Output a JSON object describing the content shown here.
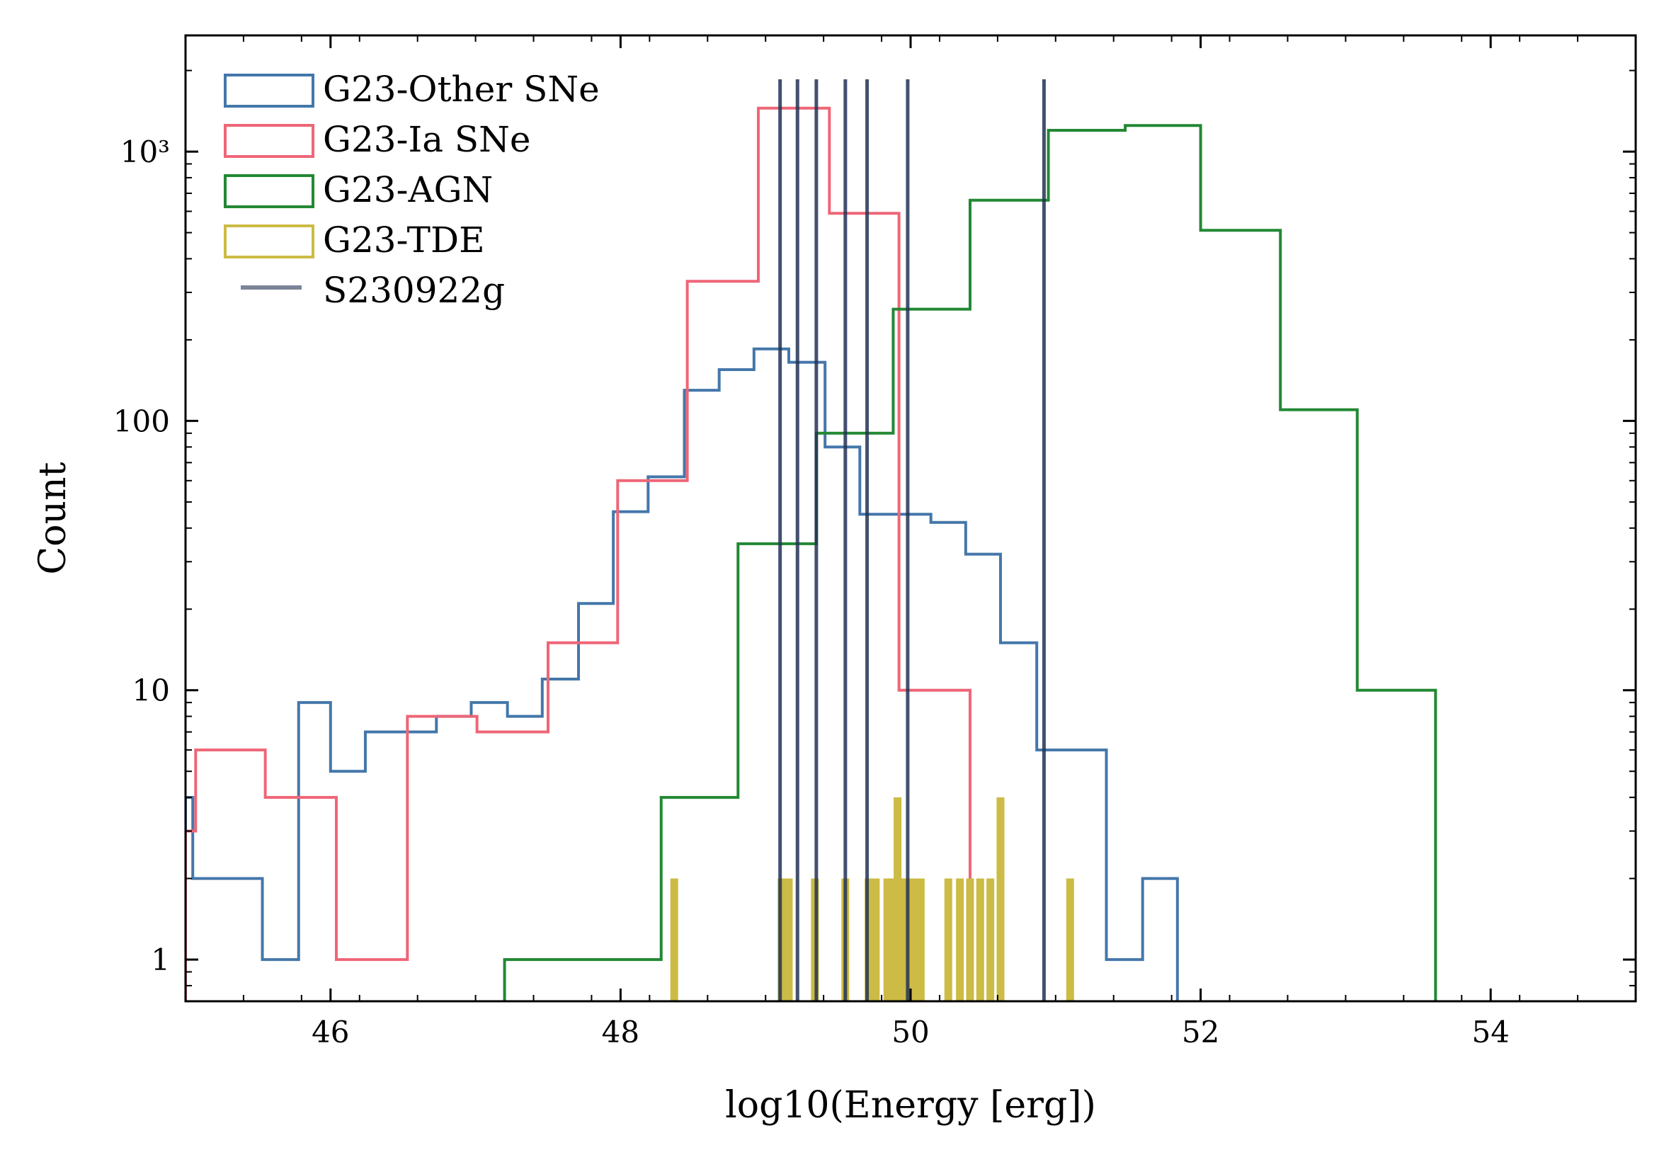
{
  "chart_data": {
    "type": "histogram",
    "xlabel": "log10(Energy [erg])",
    "ylabel": "Count",
    "xlim": [
      45,
      55
    ],
    "ylim": [
      0.7,
      2700
    ],
    "yscale": "log",
    "xticks": [
      46,
      48,
      50,
      52,
      54
    ],
    "xtick_labels": [
      "46",
      "48",
      "50",
      "52",
      "54"
    ],
    "yticks": [
      1,
      10,
      100,
      1000
    ],
    "ytick_labels": [
      "1",
      "10",
      "100",
      "10³"
    ],
    "grid": false,
    "legend_position": "top-left",
    "series": [
      {
        "name": "G23-Other SNe",
        "kind": "step",
        "color": "#4477aa",
        "edges": [
          45.0,
          45.05,
          45.53,
          45.78,
          46.0,
          46.24,
          46.5,
          46.73,
          46.97,
          47.22,
          47.46,
          47.71,
          47.95,
          48.19,
          48.44,
          48.68,
          48.92,
          49.16,
          49.41,
          49.65,
          49.9,
          50.14,
          50.38,
          50.62,
          50.87,
          51.11,
          51.35,
          51.6,
          51.84
        ],
        "counts": [
          4,
          2,
          1,
          9,
          5,
          7,
          7,
          8,
          9,
          8,
          11,
          21,
          46,
          62,
          130,
          155,
          185,
          165,
          80,
          45,
          45,
          42,
          32,
          15,
          6,
          6,
          1,
          2
        ]
      },
      {
        "name": "G23-Ia SNe",
        "kind": "step",
        "color": "#ee6677",
        "edges": [
          45.0,
          45.07,
          45.55,
          46.04,
          46.53,
          47.01,
          47.5,
          47.98,
          48.46,
          48.95,
          49.44,
          49.92,
          50.41
        ],
        "counts": [
          3,
          6,
          4,
          1,
          8,
          7,
          15,
          60,
          330,
          1450,
          590,
          10
        ]
      },
      {
        "name": "G23-AGN",
        "kind": "step",
        "color": "#228833",
        "edges": [
          47.2,
          48.28,
          48.81,
          49.35,
          49.88,
          50.41,
          50.95,
          51.48,
          52.0,
          52.55,
          53.08,
          53.62
        ],
        "counts": [
          1,
          4,
          35,
          90,
          260,
          660,
          1200,
          1250,
          510,
          110,
          10
        ]
      },
      {
        "name": "G23-TDE",
        "kind": "bars",
        "color": "#ccbb44",
        "x": [
          48.37,
          49.11,
          49.16,
          49.34,
          49.55,
          49.71,
          49.76,
          49.84,
          49.87,
          49.91,
          49.94,
          49.97,
          50.02,
          50.07,
          50.26,
          50.34,
          50.41,
          50.48,
          50.55,
          50.62,
          51.1
        ],
        "counts": [
          2,
          2,
          2,
          2,
          2,
          2,
          2,
          2,
          2,
          4,
          2,
          2,
          2,
          2,
          2,
          2,
          2,
          2,
          2,
          4,
          2
        ]
      },
      {
        "name": "S230922g",
        "kind": "vlines",
        "color": "#223355",
        "x": [
          49.1,
          49.22,
          49.35,
          49.55,
          49.7,
          49.98,
          50.92
        ]
      }
    ]
  }
}
